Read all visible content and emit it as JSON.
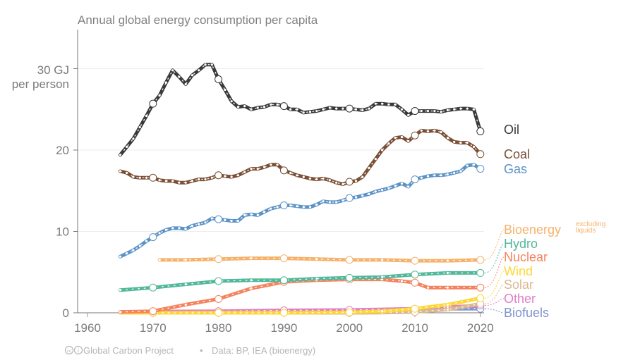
{
  "chart_data": {
    "type": "line",
    "title": "Annual global energy consumption per capita",
    "xlabel": "",
    "ylabel": "30 GJ per person",
    "ylabel_lines": [
      "30 GJ",
      "per person"
    ],
    "xlim": [
      1957,
      2022
    ],
    "ylim": [
      0,
      35
    ],
    "x_ticks": [
      1960,
      1970,
      1980,
      1990,
      2000,
      2010,
      2020
    ],
    "y_ticks": [
      {
        "value": 0,
        "label": "0"
      },
      {
        "value": 10,
        "label": "10"
      },
      {
        "value": 20,
        "label": "20"
      },
      {
        "value": 30,
        "label": ""
      }
    ],
    "grid": true,
    "legend": "right (direct labels at line ends)",
    "series": [
      {
        "name": "Oil",
        "color": "#3a3a3a",
        "x": [
          1965,
          1966,
          1967,
          1968,
          1969,
          1970,
          1971,
          1972,
          1973,
          1974,
          1975,
          1976,
          1977,
          1978,
          1979,
          1980,
          1981,
          1982,
          1983,
          1984,
          1985,
          1986,
          1987,
          1988,
          1989,
          1990,
          1991,
          1992,
          1993,
          1994,
          1995,
          1996,
          1997,
          1998,
          1999,
          2000,
          2001,
          2002,
          2003,
          2004,
          2005,
          2006,
          2007,
          2008,
          2009,
          2010,
          2011,
          2012,
          2013,
          2014,
          2015,
          2016,
          2017,
          2018,
          2019,
          2020
        ],
        "y": [
          19.4,
          20.4,
          21.4,
          22.8,
          24.2,
          25.7,
          26.7,
          28.3,
          29.8,
          29.0,
          28.1,
          29.2,
          29.8,
          30.5,
          30.5,
          28.7,
          27.4,
          26.0,
          25.3,
          25.4,
          25.0,
          25.2,
          25.3,
          25.6,
          25.6,
          25.4,
          25.0,
          25.0,
          24.6,
          24.7,
          24.8,
          25.0,
          25.2,
          25.1,
          25.1,
          25.1,
          25.0,
          24.9,
          25.1,
          25.7,
          25.7,
          25.6,
          25.6,
          25.0,
          24.3,
          24.8,
          24.8,
          24.8,
          24.8,
          24.7,
          24.9,
          25.0,
          25.1,
          25.1,
          25.0,
          22.3
        ]
      },
      {
        "name": "Coal",
        "color": "#7b4f35",
        "x": [
          1965,
          1966,
          1967,
          1968,
          1969,
          1970,
          1971,
          1972,
          1973,
          1974,
          1975,
          1976,
          1977,
          1978,
          1979,
          1980,
          1981,
          1982,
          1983,
          1984,
          1985,
          1986,
          1987,
          1988,
          1989,
          1990,
          1991,
          1992,
          1993,
          1994,
          1995,
          1996,
          1997,
          1998,
          1999,
          2000,
          2001,
          2002,
          2003,
          2004,
          2005,
          2006,
          2007,
          2008,
          2009,
          2010,
          2011,
          2012,
          2013,
          2014,
          2015,
          2016,
          2017,
          2018,
          2019,
          2020
        ],
        "y": [
          17.4,
          17.2,
          16.7,
          16.6,
          16.6,
          16.6,
          16.3,
          16.2,
          16.2,
          16.0,
          16.0,
          16.2,
          16.4,
          16.4,
          16.6,
          16.9,
          16.8,
          16.7,
          16.9,
          17.3,
          17.7,
          17.7,
          17.9,
          18.2,
          18.2,
          17.5,
          17.2,
          16.9,
          16.7,
          16.5,
          16.4,
          16.5,
          16.3,
          16.0,
          15.8,
          16.1,
          16.2,
          16.7,
          17.8,
          18.9,
          20.0,
          20.8,
          21.5,
          21.6,
          21.1,
          21.8,
          22.4,
          22.3,
          22.4,
          22.2,
          21.5,
          21.0,
          20.9,
          20.9,
          20.4,
          19.5
        ]
      },
      {
        "name": "Gas",
        "color": "#5b93c6",
        "x": [
          1965,
          1966,
          1967,
          1968,
          1969,
          1970,
          1971,
          1972,
          1973,
          1974,
          1975,
          1976,
          1977,
          1978,
          1979,
          1980,
          1981,
          1982,
          1983,
          1984,
          1985,
          1986,
          1987,
          1988,
          1989,
          1990,
          1991,
          1992,
          1993,
          1994,
          1995,
          1996,
          1997,
          1998,
          1999,
          2000,
          2001,
          2002,
          2003,
          2004,
          2005,
          2006,
          2007,
          2008,
          2009,
          2010,
          2011,
          2012,
          2013,
          2014,
          2015,
          2016,
          2017,
          2018,
          2019,
          2020
        ],
        "y": [
          6.9,
          7.3,
          7.7,
          8.2,
          8.8,
          9.3,
          9.8,
          10.2,
          10.4,
          10.4,
          10.3,
          10.7,
          10.9,
          11.1,
          11.6,
          11.5,
          11.4,
          11.3,
          11.3,
          12.0,
          12.1,
          12.0,
          12.4,
          12.8,
          13.0,
          13.2,
          13.2,
          13.1,
          13.0,
          13.0,
          13.3,
          13.7,
          13.6,
          13.6,
          13.8,
          14.1,
          14.2,
          14.4,
          14.6,
          14.9,
          15.1,
          15.3,
          15.6,
          15.9,
          15.5,
          16.4,
          16.6,
          16.8,
          16.9,
          16.9,
          17.0,
          17.2,
          17.4,
          18.1,
          18.2,
          17.7
        ]
      },
      {
        "name": "Bioenergy",
        "note": "excluding liquids",
        "color": "#f6b26b",
        "x": [
          1971,
          1975,
          1980,
          1985,
          1990,
          1995,
          2000,
          2005,
          2010,
          2015,
          2020
        ],
        "y": [
          6.5,
          6.5,
          6.6,
          6.7,
          6.7,
          6.6,
          6.5,
          6.5,
          6.4,
          6.4,
          6.5
        ]
      },
      {
        "name": "Hydro",
        "color": "#52b89a",
        "x": [
          1965,
          1970,
          1975,
          1980,
          1985,
          1990,
          1995,
          2000,
          2005,
          2010,
          2015,
          2020
        ],
        "y": [
          2.8,
          3.1,
          3.5,
          3.9,
          4.0,
          4.0,
          4.2,
          4.3,
          4.4,
          4.7,
          4.9,
          4.9
        ]
      },
      {
        "name": "Nuclear",
        "color": "#f4845f",
        "x": [
          1965,
          1970,
          1975,
          1980,
          1985,
          1990,
          1995,
          2000,
          2005,
          2008,
          2010,
          2012,
          2015,
          2020
        ],
        "y": [
          0.1,
          0.2,
          1.0,
          1.7,
          3.0,
          3.8,
          4.0,
          4.1,
          4.1,
          3.9,
          3.7,
          3.1,
          3.1,
          3.1
        ]
      },
      {
        "name": "Wind",
        "color": "#fdd835",
        "x": [
          1965,
          1970,
          1980,
          1990,
          2000,
          2005,
          2010,
          2015,
          2020
        ],
        "y": [
          0.0,
          0.0,
          0.0,
          0.0,
          0.05,
          0.2,
          0.5,
          1.0,
          1.8
        ]
      },
      {
        "name": "Solar",
        "color": "#d9b88f",
        "x": [
          1965,
          1970,
          1980,
          1990,
          2000,
          2005,
          2010,
          2015,
          2020
        ],
        "y": [
          0.0,
          0.0,
          0.0,
          0.0,
          0.0,
          0.02,
          0.1,
          0.4,
          1.1
        ]
      },
      {
        "name": "Other",
        "color": "#e07ec8",
        "x": [
          1965,
          1970,
          1980,
          1990,
          2000,
          2010,
          2015,
          2020
        ],
        "y": [
          0.1,
          0.15,
          0.2,
          0.3,
          0.35,
          0.5,
          0.7,
          0.9
        ]
      },
      {
        "name": "Biofuels",
        "color": "#8095cd",
        "x": [
          1965,
          1970,
          1980,
          1990,
          2000,
          2005,
          2010,
          2015,
          2020
        ],
        "y": [
          0.0,
          0.0,
          0.05,
          0.1,
          0.1,
          0.2,
          0.4,
          0.5,
          0.5
        ]
      }
    ]
  },
  "footer": {
    "license_icons": "cc-by-icons",
    "source_org": "Global Carbon Project",
    "separator": "•",
    "data_credit": "Data: BP, IEA (bioenergy)"
  }
}
